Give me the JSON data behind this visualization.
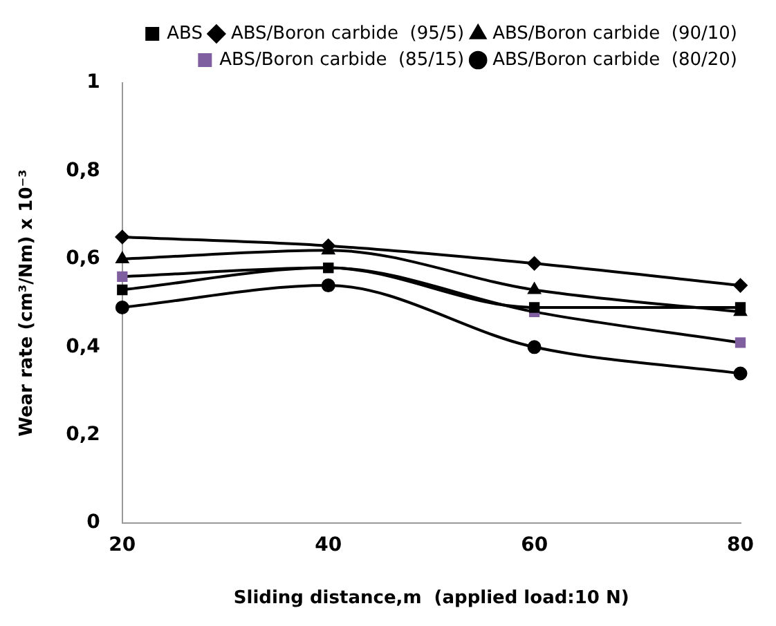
{
  "chart_data": {
    "type": "line",
    "xlabel": "Sliding distance,m  (applied load:10 N)",
    "ylabel": "Wear rate (cm³/Nm) x 10⁻³",
    "categories": [
      "20",
      "40",
      "60",
      "80"
    ],
    "series": [
      {
        "name": "ABS",
        "color": "#000000",
        "marker": "square",
        "values": [
          0.53,
          0.58,
          0.49,
          0.49
        ]
      },
      {
        "name": "ABS/Boron carbide  (95/5)",
        "color": "#000000",
        "marker": "diamond",
        "values": [
          0.65,
          0.63,
          0.59,
          0.54
        ]
      },
      {
        "name": "ABS/Boron carbide  (90/10)",
        "color": "#000000",
        "marker": "triangle",
        "values": [
          0.6,
          0.62,
          0.53,
          0.48
        ]
      },
      {
        "name": "ABS/Boron carbide  (85/15)",
        "color": "#7f5fa0",
        "marker": "square",
        "values": [
          0.56,
          0.58,
          0.48,
          0.41
        ]
      },
      {
        "name": "ABS/Boron carbide  (80/20)",
        "color": "#000000",
        "marker": "circle",
        "values": [
          0.49,
          0.54,
          0.4,
          0.34
        ]
      }
    ],
    "ylim": [
      0,
      1
    ],
    "yticks": [
      0,
      {
        "value": 0.2,
        "label": "0,2"
      },
      {
        "value": 0.4,
        "label": "0,4"
      },
      {
        "value": 0.6,
        "label": "0,6"
      },
      {
        "value": 0.8,
        "label": "0,8"
      },
      1
    ],
    "grid": false,
    "legend": "top",
    "line_style": "solid"
  }
}
